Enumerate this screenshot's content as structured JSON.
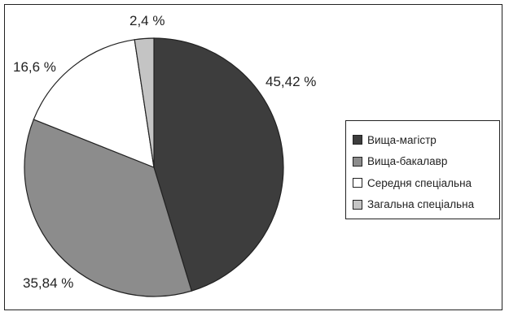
{
  "chart_data": {
    "type": "pie",
    "slices": [
      {
        "name": "Вища-магістр",
        "value": 45.42,
        "label": "45,42 %",
        "color": "#3d3d3d"
      },
      {
        "name": "Вища-бакалавр",
        "value": 35.84,
        "label": "35,84 %",
        "color": "#8c8c8c"
      },
      {
        "name": "Середня спеціальна",
        "value": 16.6,
        "label": "16,6 %",
        "color": "#ffffff"
      },
      {
        "name": "Загальна спеціальна",
        "value": 2.4,
        "label": "2,4 %",
        "color": "#c4c4c4"
      }
    ],
    "legend_position": "right"
  }
}
